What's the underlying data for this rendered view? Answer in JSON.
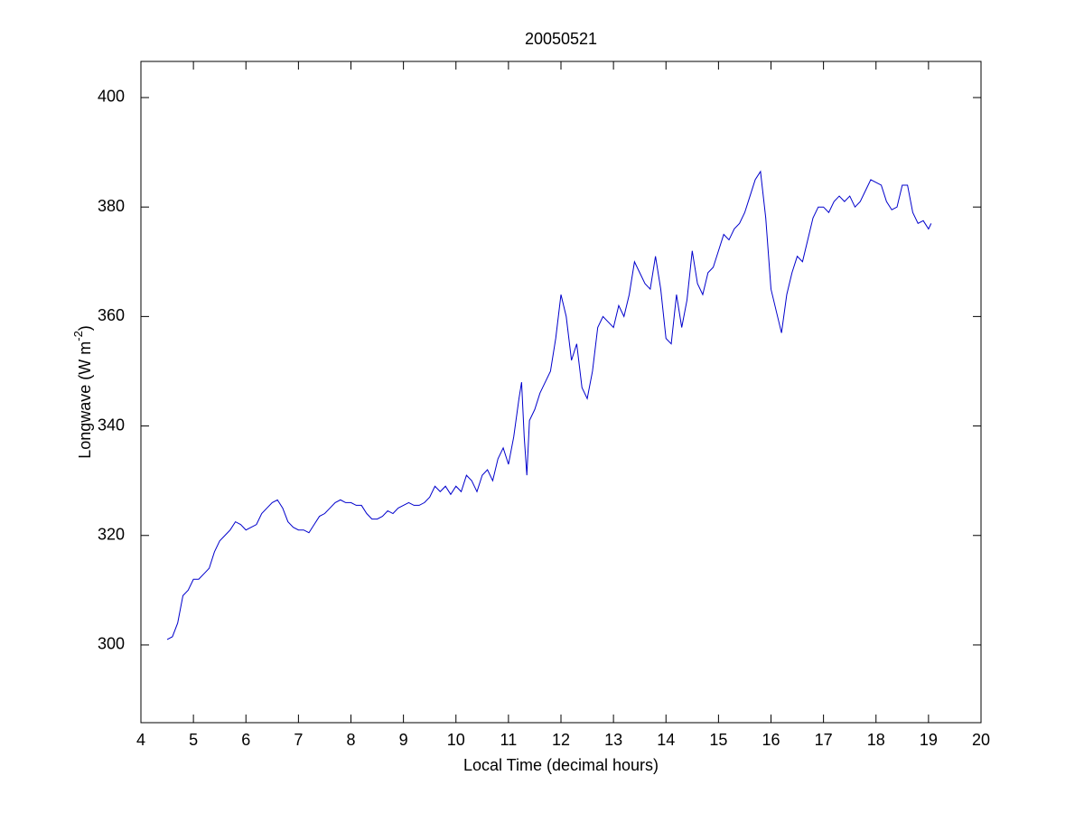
{
  "chart_data": {
    "type": "line",
    "title": "20050521",
    "x_label": "Local Time (decimal hours)",
    "y_label": {
      "text": "Longwave (W m",
      "superscript": "-2",
      "suffix": ")"
    },
    "xlim": [
      4,
      20
    ],
    "xticks": [
      4,
      5,
      6,
      7,
      8,
      9,
      10,
      11,
      12,
      13,
      14,
      15,
      16,
      17,
      18,
      19,
      20
    ],
    "ylim": [
      285.8,
      406.6
    ],
    "yticks": [
      300,
      320,
      340,
      360,
      380,
      400
    ],
    "grid": false,
    "box": true,
    "x": [
      4.5,
      4.6,
      4.7,
      4.8,
      4.9,
      5.0,
      5.1,
      5.2,
      5.3,
      5.4,
      5.5,
      5.6,
      5.7,
      5.8,
      5.9,
      6.0,
      6.1,
      6.2,
      6.3,
      6.4,
      6.5,
      6.6,
      6.7,
      6.8,
      6.9,
      7.0,
      7.1,
      7.2,
      7.3,
      7.4,
      7.5,
      7.6,
      7.7,
      7.8,
      7.9,
      8.0,
      8.1,
      8.2,
      8.3,
      8.4,
      8.5,
      8.6,
      8.7,
      8.8,
      8.9,
      9.0,
      9.1,
      9.2,
      9.3,
      9.4,
      9.5,
      9.6,
      9.7,
      9.8,
      9.9,
      10.0,
      10.1,
      10.2,
      10.3,
      10.4,
      10.5,
      10.6,
      10.7,
      10.8,
      10.9,
      11.0,
      11.1,
      11.2,
      11.25,
      11.3,
      11.35,
      11.4,
      11.5,
      11.6,
      11.7,
      11.8,
      11.9,
      12.0,
      12.1,
      12.2,
      12.3,
      12.4,
      12.5,
      12.6,
      12.7,
      12.8,
      12.9,
      13.0,
      13.1,
      13.2,
      13.3,
      13.4,
      13.5,
      13.6,
      13.7,
      13.8,
      13.9,
      14.0,
      14.1,
      14.2,
      14.3,
      14.4,
      14.5,
      14.6,
      14.7,
      14.8,
      14.9,
      15.0,
      15.1,
      15.2,
      15.3,
      15.4,
      15.5,
      15.6,
      15.7,
      15.8,
      15.9,
      16.0,
      16.1,
      16.2,
      16.3,
      16.4,
      16.5,
      16.6,
      16.7,
      16.8,
      16.9,
      17.0,
      17.1,
      17.2,
      17.3,
      17.4,
      17.5,
      17.6,
      17.7,
      17.8,
      17.9,
      18.0,
      18.1,
      18.2,
      18.3,
      18.4,
      18.5,
      18.6,
      18.7,
      18.8,
      18.9,
      19.0,
      19.05
    ],
    "series": [
      {
        "color": "#0000cc",
        "values": [
          301,
          301.5,
          304,
          309,
          310,
          312,
          312,
          313,
          314,
          317,
          319,
          320,
          321,
          322.5,
          322,
          321,
          321.5,
          322,
          324,
          325,
          326,
          326.5,
          325,
          322.5,
          321.5,
          321,
          321,
          320.5,
          322,
          323.5,
          324,
          325,
          326,
          326.5,
          326,
          326,
          325.5,
          325.5,
          324,
          323,
          323,
          323.5,
          324.5,
          324,
          325,
          325.5,
          326,
          325.5,
          325.5,
          326,
          327,
          329,
          328,
          329,
          327.5,
          329,
          328,
          331,
          330,
          328,
          331,
          332,
          330,
          334,
          336,
          333,
          338,
          345,
          348,
          338,
          331,
          341,
          343,
          346,
          348,
          350,
          356,
          364,
          360,
          352,
          355,
          347,
          345,
          350,
          358,
          360,
          359,
          358,
          362,
          360,
          364,
          370,
          368,
          366,
          365,
          371,
          365,
          356,
          355,
          364,
          358,
          363,
          372,
          366,
          364,
          368,
          369,
          372,
          375,
          374,
          376,
          377,
          379,
          382,
          385,
          386.5,
          378,
          365,
          361,
          357,
          364,
          368,
          371,
          370,
          374,
          378,
          380,
          380,
          379,
          381,
          382,
          381,
          382,
          380,
          381,
          383,
          385,
          384.5,
          384,
          381,
          379.5,
          380,
          384,
          384,
          379,
          377,
          377.5,
          376,
          377
        ]
      }
    ]
  }
}
